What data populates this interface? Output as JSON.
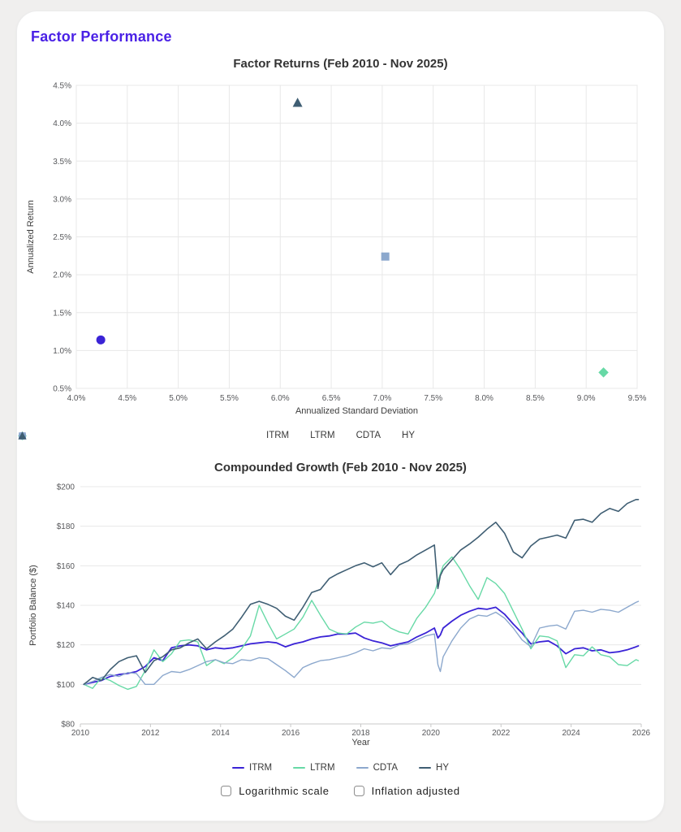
{
  "page": {
    "title": "Factor Performance"
  },
  "colors": {
    "accent": "#4a21e6",
    "page_bg": "#f0efee",
    "card_bg": "#ffffff",
    "grid": "#e8e8e8",
    "axis_line": "#c9c9c9",
    "title_text": "#333333",
    "tick_text": "#57585b",
    "itrm": "#3a23d6",
    "ltrm": "#67d9a6",
    "cdta": "#8ca8cd",
    "hy": "#3f5e73"
  },
  "chart_data": [
    {
      "type": "scatter",
      "title": "Factor Returns (Feb 2010 - Nov 2025)",
      "xlabel": "Annualized Standard Deviation",
      "ylabel": "Annualized Return",
      "xlim": [
        4.0,
        9.5
      ],
      "ylim": [
        0.5,
        4.5
      ],
      "grid": true,
      "legend_position": "bottom",
      "x_ticks": {
        "values": [
          4.0,
          4.5,
          5.0,
          5.5,
          6.0,
          6.5,
          7.0,
          7.5,
          8.0,
          8.5,
          9.0,
          9.5
        ],
        "labels": [
          "4.0%",
          "4.5%",
          "5.0%",
          "5.5%",
          "6.0%",
          "6.5%",
          "7.0%",
          "7.5%",
          "8.0%",
          "8.5%",
          "9.0%",
          "9.5%"
        ]
      },
      "y_ticks": {
        "values": [
          0.5,
          1.0,
          1.5,
          2.0,
          2.5,
          3.0,
          3.5,
          4.0,
          4.5
        ],
        "labels": [
          "0.5%",
          "1.0%",
          "1.5%",
          "2.0%",
          "2.5%",
          "3.0%",
          "3.5%",
          "4.0%",
          "4.5%"
        ]
      },
      "series": [
        {
          "name": "ITRM",
          "marker": "circle",
          "color": "#3a23d6",
          "x": 4.24,
          "y": 1.14
        },
        {
          "name": "LTRM",
          "marker": "diamond",
          "color": "#67d9a6",
          "x": 9.17,
          "y": 0.71
        },
        {
          "name": "CDTA",
          "marker": "square",
          "color": "#8ca8cd",
          "x": 7.03,
          "y": 2.24
        },
        {
          "name": "HY",
          "marker": "triangle",
          "color": "#3f5e73",
          "x": 6.17,
          "y": 4.27
        }
      ]
    },
    {
      "type": "line",
      "title": "Compounded Growth (Feb 2010 - Nov 2025)",
      "xlabel": "Year",
      "ylabel": "Portfolio Balance ($)",
      "xlim": [
        2010,
        2026
      ],
      "ylim": [
        80,
        200
      ],
      "grid": "horizontal",
      "legend_position": "bottom",
      "x_ticks": {
        "values": [
          2010,
          2012,
          2014,
          2016,
          2018,
          2020,
          2022,
          2024,
          2026
        ],
        "labels": [
          "2010",
          "2012",
          "2014",
          "2016",
          "2018",
          "2020",
          "2022",
          "2024",
          "2026"
        ]
      },
      "y_ticks": {
        "values": [
          80,
          100,
          120,
          140,
          160,
          180,
          200
        ],
        "labels": [
          "$80",
          "$100",
          "$120",
          "$140",
          "$160",
          "$180",
          "$200"
        ]
      },
      "x": [
        2010.1,
        2010.35,
        2010.6,
        2010.85,
        2011.1,
        2011.35,
        2011.6,
        2011.85,
        2012.1,
        2012.35,
        2012.6,
        2012.85,
        2013.1,
        2013.35,
        2013.6,
        2013.85,
        2014.1,
        2014.35,
        2014.6,
        2014.85,
        2015.1,
        2015.35,
        2015.6,
        2015.85,
        2016.1,
        2016.35,
        2016.6,
        2016.85,
        2017.1,
        2017.35,
        2017.6,
        2017.85,
        2018.1,
        2018.35,
        2018.6,
        2018.85,
        2019.1,
        2019.35,
        2019.6,
        2019.85,
        2020.1,
        2020.2,
        2020.27,
        2020.35,
        2020.6,
        2020.85,
        2021.1,
        2021.35,
        2021.6,
        2021.85,
        2022.1,
        2022.35,
        2022.6,
        2022.85,
        2023.1,
        2023.35,
        2023.6,
        2023.85,
        2024.1,
        2024.35,
        2024.6,
        2024.85,
        2025.1,
        2025.35,
        2025.6,
        2025.85,
        2025.92
      ],
      "series": [
        {
          "name": "ITRM",
          "color": "#3a23d6",
          "width": 1.8,
          "values": [
            100,
            101,
            102,
            104,
            105,
            105.5,
            106.5,
            109,
            113.5,
            112,
            118.5,
            119.5,
            120,
            119.5,
            117.5,
            118.5,
            118,
            118.5,
            119.5,
            120.5,
            121,
            121.5,
            121,
            119,
            120.5,
            121.5,
            123,
            124,
            124.5,
            125.5,
            125.5,
            126,
            123.5,
            122,
            121,
            119.5,
            120.5,
            121.5,
            124,
            126,
            128.5,
            123.5,
            125,
            128.5,
            132,
            135,
            137,
            138.5,
            138,
            139,
            135.5,
            130.5,
            126,
            120.5,
            121.5,
            122,
            119.5,
            115.5,
            118,
            118.5,
            117,
            117.5,
            116,
            116.5,
            117.5,
            119,
            119.5
          ]
        },
        {
          "name": "LTRM",
          "color": "#67d9a6",
          "width": 1.4,
          "values": [
            100,
            98,
            103.5,
            102,
            99.5,
            97.5,
            99,
            107,
            117.5,
            111.5,
            115.5,
            122,
            122.5,
            121.5,
            109.5,
            112.5,
            110.5,
            113.5,
            118,
            124.5,
            140,
            131,
            123,
            125.5,
            128,
            134,
            142.5,
            135,
            128,
            126,
            125.5,
            129,
            131.5,
            131,
            132,
            128.5,
            126.5,
            125.5,
            133.5,
            139,
            146,
            152,
            156,
            160,
            164.5,
            158,
            150,
            143,
            154,
            151,
            146,
            137,
            128,
            118,
            124.5,
            124,
            122,
            108.5,
            115,
            114.5,
            119,
            115,
            114,
            110,
            109.5,
            112.5,
            112
          ]
        },
        {
          "name": "CDTA",
          "color": "#8ca8cd",
          "width": 1.4,
          "values": [
            100,
            101.5,
            103.5,
            105,
            104,
            106,
            105.5,
            100,
            100,
            104.5,
            106.5,
            106,
            107.5,
            109.5,
            111.5,
            112.5,
            111,
            110.5,
            112.5,
            112,
            113.5,
            113,
            110,
            107,
            103.5,
            108.5,
            110.5,
            112,
            112.5,
            113.5,
            114.5,
            116,
            118,
            117,
            118.5,
            118,
            120,
            120.5,
            122.5,
            124.5,
            125.5,
            110,
            106.5,
            114,
            122,
            128.5,
            133,
            135,
            134.5,
            136.5,
            133.5,
            128.5,
            122.5,
            119,
            128.5,
            129.5,
            130,
            128,
            137,
            137.5,
            136.5,
            138,
            137.5,
            136.5,
            139,
            141.5,
            142
          ]
        },
        {
          "name": "HY",
          "color": "#3f5e73",
          "width": 1.6,
          "values": [
            100,
            103.5,
            102,
            107.5,
            111.5,
            113.5,
            114.5,
            106,
            112,
            114,
            117.5,
            118.5,
            121,
            123,
            118,
            121.5,
            124.5,
            128,
            134,
            140.5,
            142,
            140.5,
            138.5,
            134.5,
            132.5,
            139,
            146.5,
            148,
            153.5,
            156,
            158,
            160,
            161.5,
            159.5,
            161.5,
            155.5,
            160.5,
            162.5,
            165.5,
            168,
            170.5,
            148.5,
            155,
            158,
            163,
            168,
            171,
            174.5,
            178.5,
            182,
            176.5,
            167,
            164,
            170,
            173.5,
            174.5,
            175.5,
            174,
            183,
            183.5,
            182,
            186.5,
            189,
            187.5,
            191.5,
            193.5,
            193.5
          ]
        }
      ]
    }
  ],
  "controls": {
    "checkboxes": [
      {
        "label": "Logarithmic scale",
        "checked": false
      },
      {
        "label": "Inflation adjusted",
        "checked": false
      }
    ]
  }
}
